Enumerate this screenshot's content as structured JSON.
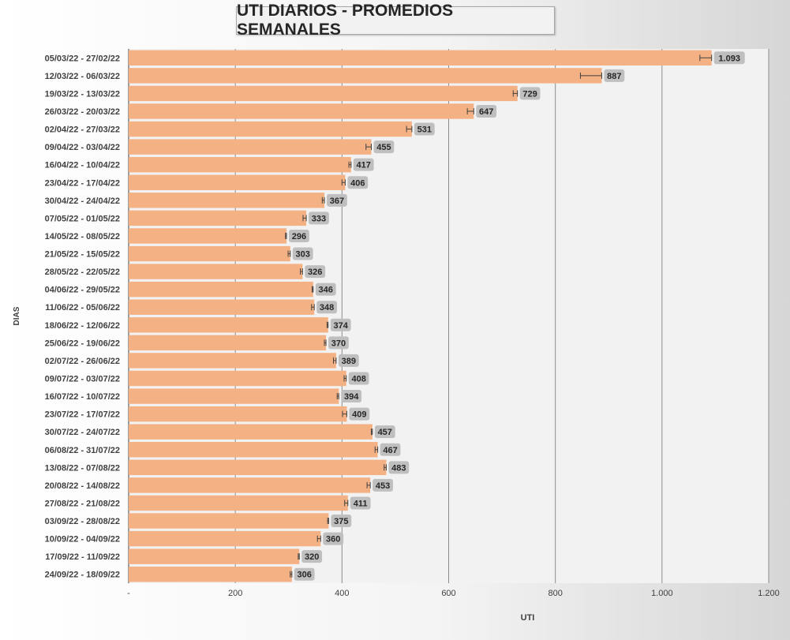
{
  "chart_data": {
    "type": "bar",
    "orientation": "horizontal",
    "title": "UTI DIARIOS - PROMEDIOS SEMANALES",
    "xlabel": "UTI",
    "ylabel": "DIAS",
    "xlim": [
      0,
      1200
    ],
    "x_ticks": [
      0,
      200,
      400,
      600,
      800,
      1000,
      1200
    ],
    "x_tick_labels": [
      "-",
      "200",
      "400",
      "600",
      "800",
      "1.000",
      "1.200"
    ],
    "grid": "vertical",
    "legend": "none",
    "bar_color": "#F4B183",
    "categories": [
      "05/03/22 - 27/02/22",
      "12/03/22 - 06/03/22",
      "19/03/22 - 13/03/22",
      "26/03/22 - 20/03/22",
      "02/04/22 - 27/03/22",
      "09/04/22 - 03/04/22",
      "16/04/22 - 10/04/22",
      "23/04/22 - 17/04/22",
      "30/04/22 - 24/04/22",
      "07/05/22 - 01/05/22",
      "14/05/22 - 08/05/22",
      "21/05/22 - 15/05/22",
      "28/05/22 - 22/05/22",
      "04/06/22 - 29/05/22",
      "11/06/22 - 05/06/22",
      "18/06/22 - 12/06/22",
      "25/06/22 - 19/06/22",
      "02/07/22 - 26/06/22",
      "09/07/22 - 03/07/22",
      "16/07/22 - 10/07/22",
      "23/07/22 - 17/07/22",
      "30/07/22 - 24/07/22",
      "06/08/22 - 31/07/22",
      "13/08/22 - 07/08/22",
      "20/08/22 - 14/08/22",
      "27/08/22 - 21/08/22",
      "03/09/22 - 28/08/22",
      "10/09/22 - 04/09/22",
      "17/09/22 - 11/09/22",
      "24/09/22 - 18/09/22"
    ],
    "values": [
      1093,
      887,
      729,
      647,
      531,
      455,
      417,
      406,
      367,
      333,
      296,
      303,
      326,
      346,
      348,
      374,
      370,
      389,
      408,
      394,
      409,
      457,
      467,
      483,
      453,
      411,
      375,
      360,
      320,
      306
    ],
    "value_labels": [
      "1.093",
      "887",
      "729",
      "647",
      "531",
      "455",
      "417",
      "406",
      "367",
      "333",
      "296",
      "303",
      "326",
      "346",
      "348",
      "374",
      "370",
      "389",
      "408",
      "394",
      "409",
      "457",
      "467",
      "483",
      "453",
      "411",
      "375",
      "360",
      "320",
      "306"
    ],
    "error_bars": [
      22,
      40,
      8,
      12,
      10,
      10,
      4,
      6,
      4,
      6,
      2,
      4,
      4,
      2,
      5,
      2,
      3,
      5,
      4,
      3,
      8,
      2,
      5,
      4,
      6,
      6,
      2,
      6,
      2,
      3
    ]
  }
}
